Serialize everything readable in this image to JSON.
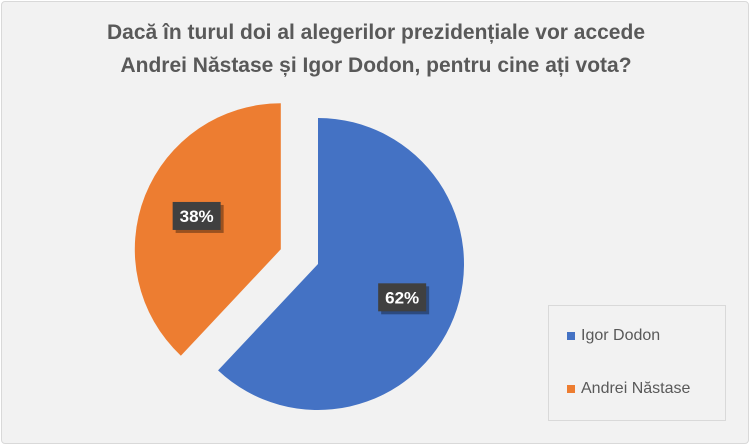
{
  "chart_data": {
    "type": "pie",
    "title_lines": [
      "Dacă în turul doi al alegerilor prezidențiale vor accede",
      "Andrei Năstase și Igor Dodon, pentru cine ați vota?"
    ],
    "slices": [
      {
        "name": "Igor Dodon",
        "value": 62,
        "label": "62%",
        "color": "#4472c4"
      },
      {
        "name": "Andrei Năstase",
        "value": 38,
        "label": "38%",
        "color": "#ed7d31"
      }
    ],
    "exploded_slice": "Andrei Năstase",
    "legend_position": "bottom-right"
  }
}
